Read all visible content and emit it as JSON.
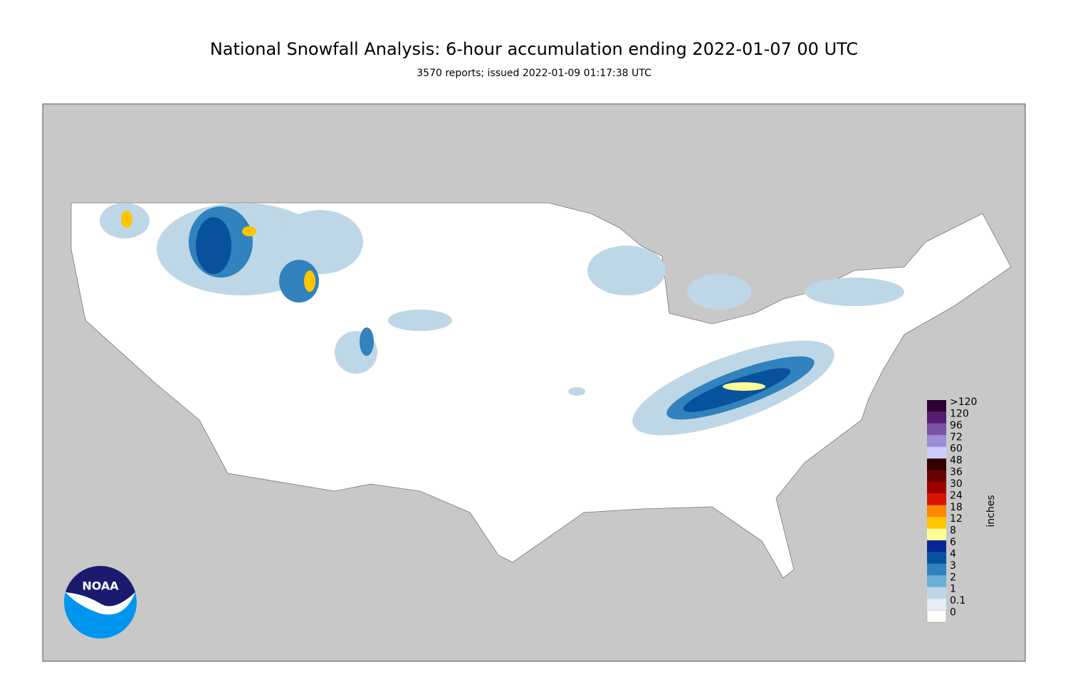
{
  "header": {
    "title": "National Snowfall Analysis: 6-hour accumulation ending 2022-01-07 00 UTC",
    "subtitle": "3570 reports; issued 2022-01-09 01:17:38 UTC"
  },
  "logo": {
    "text": "NOAA"
  },
  "legend": {
    "unit": "inches",
    "bins": [
      {
        "label": "0",
        "color": "#ffffff"
      },
      {
        "label": "0.1",
        "color": "#e4edf6"
      },
      {
        "label": "1",
        "color": "#bdd7e7"
      },
      {
        "label": "2",
        "color": "#6baed6"
      },
      {
        "label": "3",
        "color": "#3182bd"
      },
      {
        "label": "4",
        "color": "#08519c"
      },
      {
        "label": "6",
        "color": "#082694"
      },
      {
        "label": "8",
        "color": "#ffff96"
      },
      {
        "label": "12",
        "color": "#ffc400"
      },
      {
        "label": "18",
        "color": "#ff8700"
      },
      {
        "label": "24",
        "color": "#db1400"
      },
      {
        "label": "30",
        "color": "#9e0000"
      },
      {
        "label": "36",
        "color": "#690000"
      },
      {
        "label": "48",
        "color": "#360000"
      },
      {
        "label": "60",
        "color": "#ccccff"
      },
      {
        "label": "72",
        "color": "#9f8cd8"
      },
      {
        "label": "96",
        "color": "#7c52a5"
      },
      {
        "label": "120",
        "color": "#561c72"
      },
      {
        "label": ">120",
        "color": "#2e0033"
      }
    ]
  }
}
